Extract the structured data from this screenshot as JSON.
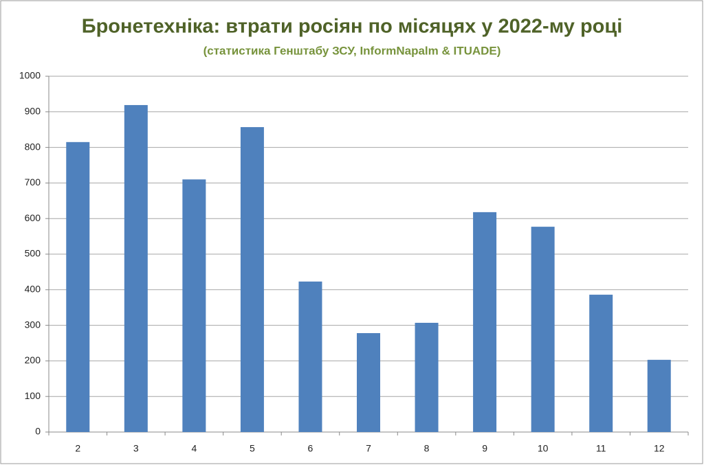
{
  "chart_data": {
    "type": "bar",
    "title": "Бронетехніка: втрати росіян по місяцях у 2022-му році",
    "subtitle": "(статистика Генштабу ЗСУ, InformNapalm & ITUADE)",
    "categories": [
      "2",
      "3",
      "4",
      "5",
      "6",
      "7",
      "8",
      "9",
      "10",
      "11",
      "12"
    ],
    "values": [
      815,
      919,
      710,
      857,
      423,
      278,
      307,
      618,
      577,
      386,
      203
    ],
    "color": "#4f81bd",
    "ylim": [
      0,
      1000
    ],
    "yticks": [
      0,
      100,
      200,
      300,
      400,
      500,
      600,
      700,
      800,
      900,
      1000
    ],
    "grid": true
  }
}
